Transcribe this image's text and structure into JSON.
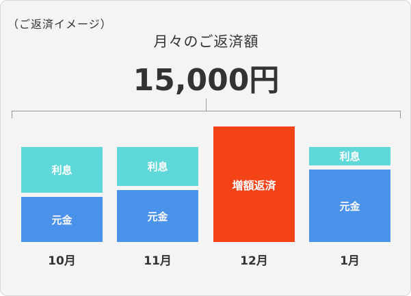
{
  "note": "（ご返済イメージ）",
  "caption": "月々のご返済額",
  "amount": "15,000円",
  "columns": [
    {
      "month": "10月",
      "interest_label": "利息",
      "principal_label": "元金"
    },
    {
      "month": "11月",
      "interest_label": "利息",
      "principal_label": "元金"
    },
    {
      "month": "12月",
      "extra_label": "増額返済"
    },
    {
      "month": "1月",
      "interest_label": "利息",
      "principal_label": "元金"
    }
  ],
  "colors": {
    "interest": "#5ed8d8",
    "principal": "#4b92ea",
    "extra_payment": "#f44317",
    "background": "#f4f4f4"
  }
}
